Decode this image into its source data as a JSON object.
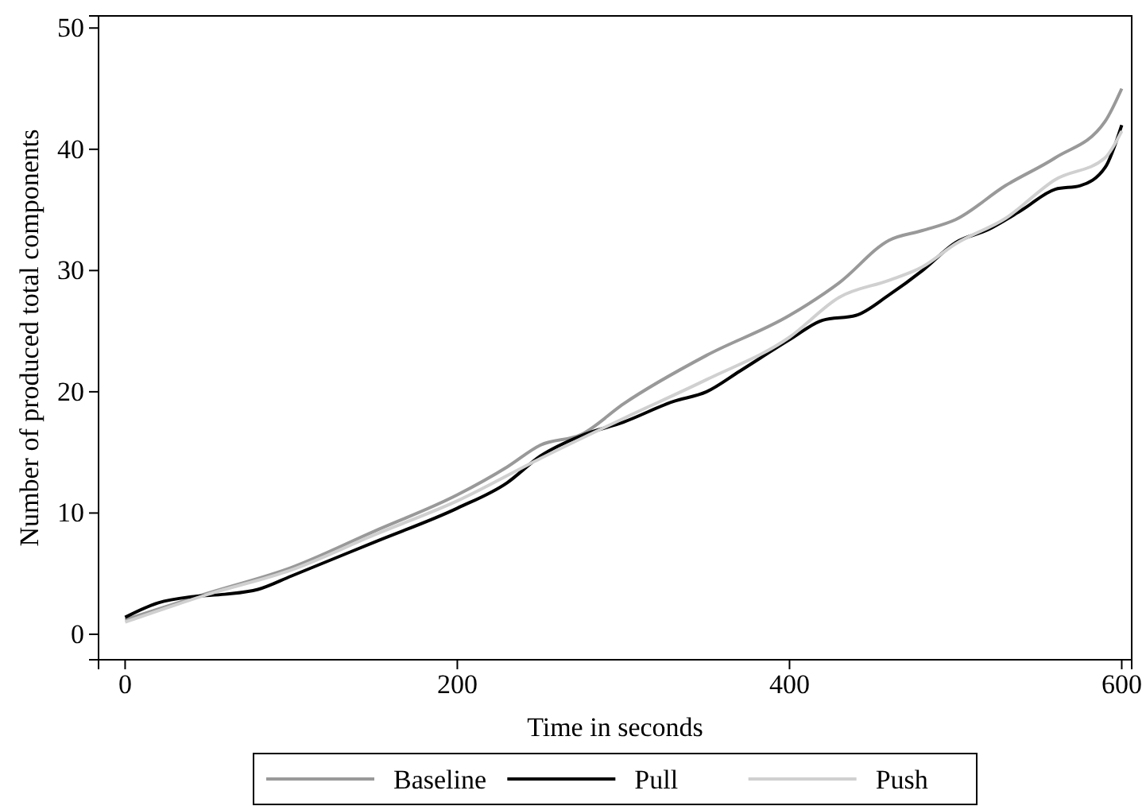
{
  "chart_data": {
    "type": "line",
    "xlabel": "Time in seconds",
    "ylabel": "Number of produced total components",
    "xlim": [
      -16,
      606
    ],
    "xticks": [
      0,
      200,
      400,
      600
    ],
    "ylim": [
      -2.1,
      51
    ],
    "yticks": [
      0,
      10,
      20,
      30,
      40,
      50
    ],
    "grid": false,
    "legend": "bottom",
    "line_style": "solid",
    "marker": "none",
    "series": [
      {
        "name": "Baseline",
        "color": "#999999",
        "x": [
          0,
          50,
          100,
          150,
          200,
          230,
          250,
          275,
          300,
          350,
          400,
          430,
          460,
          480,
          500,
          530,
          560,
          590,
          600
        ],
        "values": [
          1.2,
          3.4,
          5.5,
          8.5,
          11.5,
          13.8,
          15.6,
          16.5,
          19,
          23,
          26.3,
          29,
          32.5,
          33.3,
          34.2,
          37,
          39.3,
          42.3,
          45
        ]
      },
      {
        "name": "Pull",
        "color": "#000000",
        "x": [
          0,
          20,
          40,
          60,
          80,
          100,
          150,
          200,
          230,
          250,
          275,
          300,
          330,
          350,
          370,
          400,
          420,
          440,
          460,
          480,
          500,
          520,
          540,
          560,
          575,
          590,
          600
        ],
        "values": [
          1.4,
          2.6,
          3.1,
          3.3,
          3.7,
          4.8,
          7.6,
          10.4,
          12.5,
          14.7,
          16.4,
          17.5,
          19.2,
          20,
          21.7,
          24.3,
          25.9,
          26.3,
          28,
          30,
          32.3,
          33.4,
          35,
          36.7,
          37,
          38.5,
          42
        ]
      },
      {
        "name": "Push",
        "color": "#d0d0d0",
        "x": [
          0,
          50,
          100,
          150,
          200,
          250,
          300,
          350,
          400,
          430,
          460,
          480,
          500,
          530,
          560,
          590,
          600
        ],
        "values": [
          1.0,
          3.3,
          5.3,
          8.2,
          11,
          14.5,
          17.8,
          21,
          24.5,
          27.8,
          29.2,
          30.3,
          32.2,
          34.3,
          37.5,
          39.3,
          41.5
        ]
      }
    ]
  }
}
